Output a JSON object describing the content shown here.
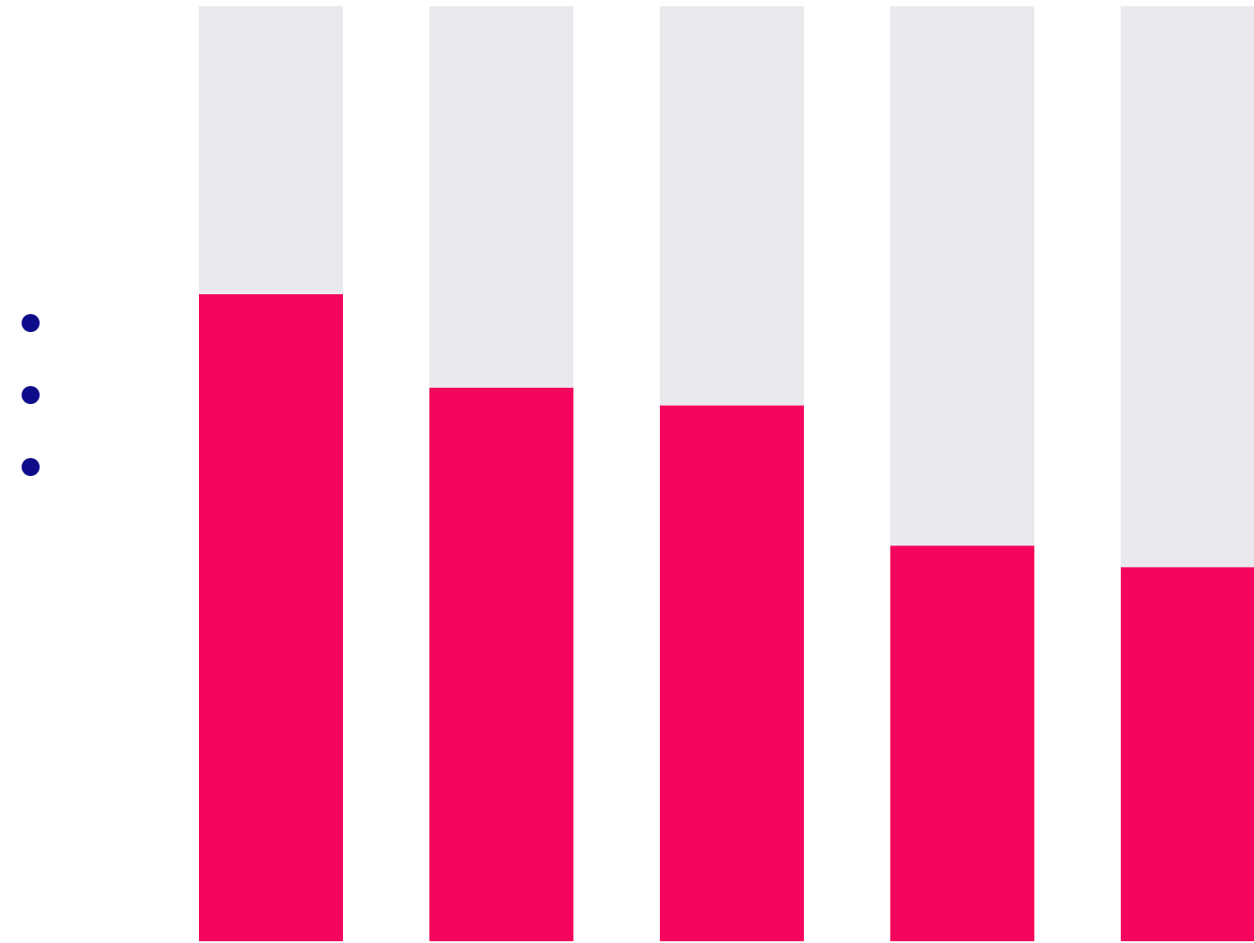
{
  "chart_data": {
    "type": "bar",
    "categories": [
      "",
      "",
      "",
      "",
      ""
    ],
    "values": [
      69.2,
      59.2,
      57.3,
      42.3,
      40.0
    ],
    "ylim": [
      0,
      100
    ],
    "grid": false,
    "legend": "left",
    "legend_entries": [
      "",
      "",
      ""
    ],
    "colors": {
      "bar_fill": "#f5055d",
      "bar_track": "#eae9ee",
      "legend_marker": "#0f0c8c",
      "background": "#ffffff"
    }
  }
}
